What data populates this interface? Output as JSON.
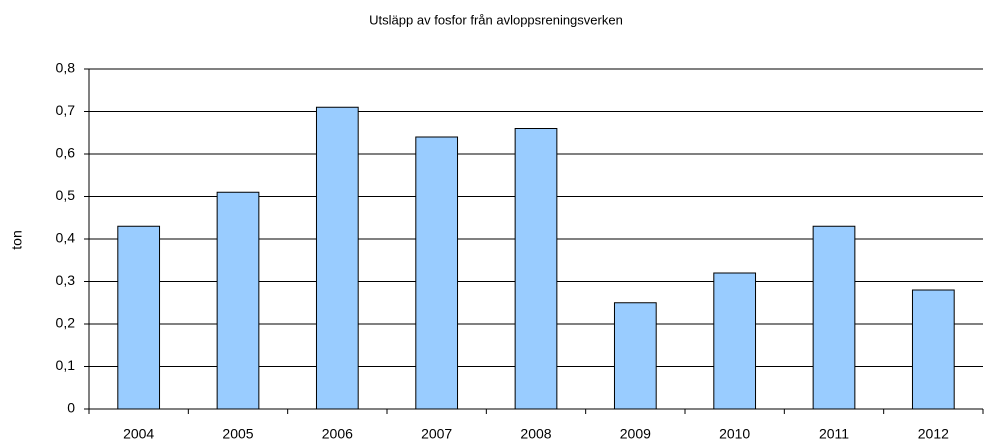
{
  "chart_data": {
    "type": "bar",
    "title": "Utsläpp av fosfor från avloppsreningsverken",
    "y_label": "ton",
    "categories": [
      "2004",
      "2005",
      "2006",
      "2007",
      "2008",
      "2009",
      "2010",
      "2011",
      "2012"
    ],
    "values": [
      0.43,
      0.51,
      0.71,
      0.64,
      0.66,
      0.25,
      0.32,
      0.43,
      0.28
    ],
    "color": "#99ccff",
    "ylim": [
      0,
      0.8
    ],
    "yticks": [
      0,
      {
        "value": 0.1,
        "label": "0,1"
      },
      {
        "value": 0.2,
        "label": "0,2"
      },
      {
        "value": 0.3,
        "label": "0,3"
      },
      {
        "value": 0.4,
        "label": "0,4"
      },
      {
        "value": 0.5,
        "label": "0,5"
      },
      {
        "value": 0.6,
        "label": "0,6"
      },
      {
        "value": 0.7,
        "label": "0,7"
      },
      {
        "value": 0.8,
        "label": "0,8"
      }
    ],
    "grid": true
  }
}
